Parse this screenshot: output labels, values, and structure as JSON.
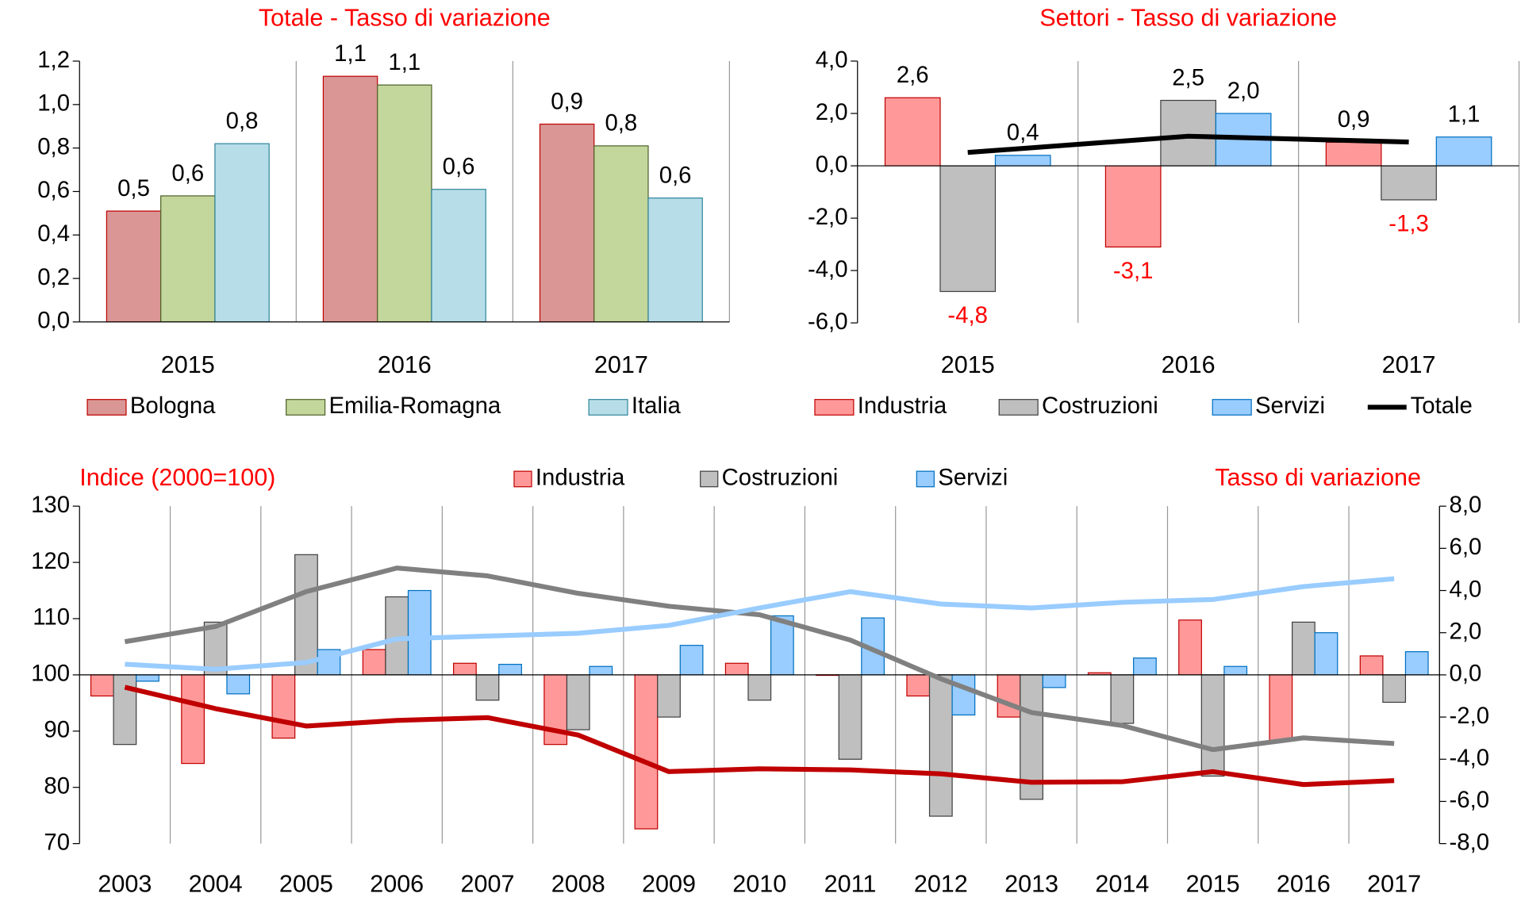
{
  "chart_data": [
    {
      "type": "bar",
      "title": "Totale - Tasso di variazione",
      "categories": [
        "2015",
        "2016",
        "2017"
      ],
      "series": [
        {
          "name": "Bologna",
          "color": "#d99694",
          "edge": "#c00000",
          "values": [
            0.51,
            1.13,
            0.91
          ],
          "value_labels": [
            "0,5",
            "1,1",
            "0,9"
          ]
        },
        {
          "name": "Emilia-Romagna",
          "color": "#c3d69b",
          "edge": "#4f6228",
          "values": [
            0.58,
            1.09,
            0.81
          ],
          "value_labels": [
            "0,6",
            "1,1",
            "0,8"
          ]
        },
        {
          "name": "Italia",
          "color": "#b7dee8",
          "edge": "#31859c",
          "values": [
            0.82,
            0.61,
            0.57
          ],
          "value_labels": [
            "0,8",
            "0,6",
            "0,6"
          ]
        }
      ],
      "ylim": [
        0,
        1.2
      ],
      "yticks": [
        {
          "value": 0,
          "label": "0,0"
        },
        {
          "value": 0.2,
          "label": "0,2"
        },
        {
          "value": 0.4,
          "label": "0,4"
        },
        {
          "value": 0.6,
          "label": "0,6"
        },
        {
          "value": 0.8,
          "label": "0,8"
        },
        {
          "value": 1,
          "label": "1,0"
        },
        {
          "value": 1.2,
          "label": "1,2"
        }
      ],
      "grid": true,
      "title_color": "#ff0000"
    },
    {
      "type": "bar",
      "title": "Settori - Tasso di variazione",
      "categories": [
        "2015",
        "2016",
        "2017"
      ],
      "series": [
        {
          "name": "Industria",
          "color": "#ff9999",
          "edge": "#c00000",
          "values": [
            2.6,
            -3.1,
            0.9
          ],
          "value_labels": [
            "2,6",
            "-3,1",
            "0,9"
          ]
        },
        {
          "name": "Costruzioni",
          "color": "#bfbfbf",
          "edge": "#404040",
          "values": [
            -4.8,
            2.5,
            -1.3
          ],
          "value_labels": [
            "-4,8",
            "2,5",
            "-1,3"
          ]
        },
        {
          "name": "Servizi",
          "color": "#99ccff",
          "edge": "#0070c0",
          "values": [
            0.4,
            2.0,
            1.1
          ],
          "value_labels": [
            "0,4",
            "2,0",
            "1,1"
          ]
        },
        {
          "name": "Totale",
          "type": "line",
          "color": "#000000",
          "values": [
            0.51,
            1.13,
            0.91
          ]
        }
      ],
      "ylim": [
        -6,
        4
      ],
      "yticks": [
        {
          "value": -6,
          "label": "-6,0"
        },
        {
          "value": -4,
          "label": "-4,0"
        },
        {
          "value": -2,
          "label": "-2,0"
        },
        {
          "value": 0,
          "label": "0,0"
        },
        {
          "value": 2,
          "label": "2,0"
        },
        {
          "value": 4,
          "label": "4,0"
        }
      ],
      "grid": true,
      "title_color": "#ff0000",
      "negative_label_color": "#ff0000"
    },
    {
      "type": "bar",
      "categories": [
        "2003",
        "2004",
        "2005",
        "2006",
        "2007",
        "2008",
        "2009",
        "2010",
        "2011",
        "2012",
        "2013",
        "2014",
        "2015",
        "2016",
        "2017"
      ],
      "annotations": [
        "Indice (2000=100)",
        "Tasso di variazione"
      ],
      "annotation_color": "#ff0000",
      "series": [
        {
          "name": "Industria",
          "color": "#ff9999",
          "edge": "#c00000",
          "axis": "y2",
          "values": [
            -1.0,
            -4.2,
            -3.0,
            1.2,
            0.55,
            -3.3,
            -7.3,
            0.55,
            0.0,
            -1.0,
            -2.0,
            0.1,
            2.6,
            -3.1,
            0.9
          ]
        },
        {
          "name": "Costruzioni",
          "color": "#bfbfbf",
          "edge": "#404040",
          "axis": "y2",
          "values": [
            -3.3,
            2.5,
            5.7,
            3.7,
            -1.2,
            -2.6,
            -2.0,
            -1.2,
            -4.0,
            -6.7,
            -5.9,
            -2.3,
            -4.8,
            2.5,
            -1.3
          ]
        },
        {
          "name": "Servizi",
          "color": "#99ccff",
          "edge": "#0070c0",
          "axis": "y2",
          "values": [
            -0.3,
            -0.9,
            1.2,
            4.0,
            0.5,
            0.4,
            1.4,
            2.8,
            2.7,
            -1.9,
            -0.6,
            0.8,
            0.4,
            2.0,
            1.1
          ]
        },
        {
          "type": "line",
          "color": "#808080",
          "values": [
            105.9,
            108.6,
            114.8,
            119.0,
            117.6,
            114.5,
            112.2,
            110.7,
            106.2,
            99.3,
            93.3,
            91.0,
            86.7,
            88.8,
            87.8
          ]
        },
        {
          "type": "line",
          "color": "#99ccff",
          "values": [
            101.9,
            101.0,
            102.2,
            106.4,
            106.9,
            107.4,
            108.8,
            111.9,
            114.8,
            112.6,
            111.9,
            112.9,
            113.4,
            115.7,
            117.1
          ]
        },
        {
          "type": "line",
          "color": "#c00000",
          "values": [
            97.8,
            94.0,
            90.9,
            91.9,
            92.4,
            89.3,
            82.8,
            83.3,
            83.1,
            82.4,
            80.9,
            81.0,
            82.8,
            80.5,
            81.2
          ]
        }
      ],
      "ylim": [
        70,
        130
      ],
      "yticks": [
        70,
        80,
        90,
        100,
        110,
        120,
        130
      ],
      "y2lim": [
        -8,
        8
      ],
      "y2ticks": [
        {
          "value": -8,
          "label": "-8,0"
        },
        {
          "value": -6,
          "label": "-6,0"
        },
        {
          "value": -4,
          "label": "-4,0"
        },
        {
          "value": -2,
          "label": "-2,0"
        },
        {
          "value": 0,
          "label": "0,0"
        },
        {
          "value": 2,
          "label": "2,0"
        },
        {
          "value": 4,
          "label": "4,0"
        },
        {
          "value": 6,
          "label": "6,0"
        },
        {
          "value": 8,
          "label": "8,0"
        }
      ],
      "grid": true
    }
  ]
}
